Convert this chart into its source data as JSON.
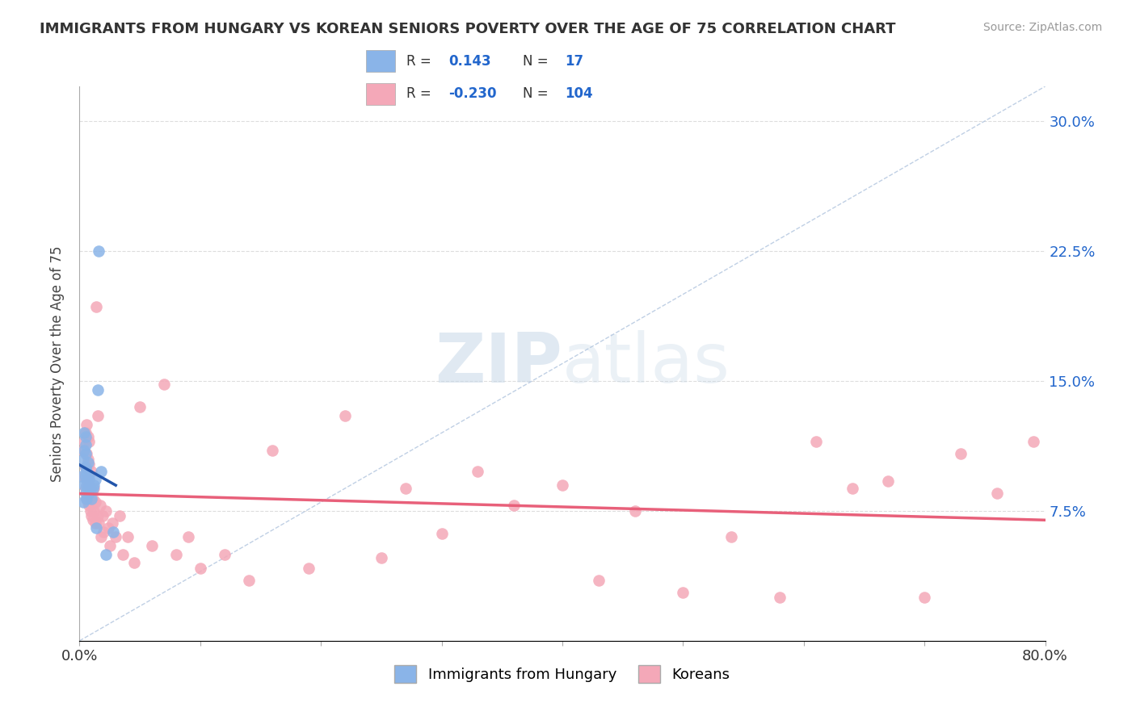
{
  "title": "IMMIGRANTS FROM HUNGARY VS KOREAN SENIORS POVERTY OVER THE AGE OF 75 CORRELATION CHART",
  "source": "Source: ZipAtlas.com",
  "ylabel": "Seniors Poverty Over the Age of 75",
  "xlim": [
    0.0,
    0.8
  ],
  "ylim": [
    0.0,
    0.32
  ],
  "yticks": [
    0.0,
    0.075,
    0.15,
    0.225,
    0.3
  ],
  "ytick_labels": [
    "",
    "7.5%",
    "15.0%",
    "22.5%",
    "30.0%"
  ],
  "blue_color": "#8ab4e8",
  "pink_color": "#f4a8b8",
  "blue_line_color": "#2255aa",
  "pink_line_color": "#e8607a",
  "dashed_line_color": "#b0c4de",
  "watermark_zip": "ZIP",
  "watermark_atlas": "atlas",
  "hungary_x": [
    0.002,
    0.003,
    0.003,
    0.004,
    0.004,
    0.004,
    0.005,
    0.005,
    0.005,
    0.005,
    0.005,
    0.005,
    0.006,
    0.006,
    0.006,
    0.007,
    0.007,
    0.007,
    0.008,
    0.008,
    0.009,
    0.01,
    0.011,
    0.012,
    0.013,
    0.014,
    0.015,
    0.016,
    0.018,
    0.022,
    0.028
  ],
  "hungary_y": [
    0.095,
    0.08,
    0.105,
    0.09,
    0.11,
    0.12,
    0.085,
    0.095,
    0.1,
    0.108,
    0.113,
    0.118,
    0.082,
    0.09,
    0.098,
    0.088,
    0.095,
    0.103,
    0.085,
    0.093,
    0.088,
    0.082,
    0.088,
    0.09,
    0.093,
    0.065,
    0.145,
    0.225,
    0.098,
    0.05,
    0.063
  ],
  "korean_x": [
    0.003,
    0.004,
    0.004,
    0.005,
    0.005,
    0.005,
    0.006,
    0.006,
    0.006,
    0.006,
    0.007,
    0.007,
    0.007,
    0.007,
    0.008,
    0.008,
    0.008,
    0.008,
    0.009,
    0.009,
    0.01,
    0.01,
    0.01,
    0.011,
    0.011,
    0.012,
    0.012,
    0.013,
    0.013,
    0.014,
    0.015,
    0.015,
    0.016,
    0.017,
    0.018,
    0.019,
    0.02,
    0.022,
    0.024,
    0.025,
    0.027,
    0.03,
    0.033,
    0.036,
    0.04,
    0.045,
    0.05,
    0.06,
    0.07,
    0.08,
    0.09,
    0.1,
    0.12,
    0.14,
    0.16,
    0.19,
    0.22,
    0.25,
    0.27,
    0.3,
    0.33,
    0.36,
    0.4,
    0.43,
    0.46,
    0.5,
    0.54,
    0.58,
    0.61,
    0.64,
    0.67,
    0.7,
    0.73,
    0.76,
    0.79
  ],
  "korean_y": [
    0.11,
    0.095,
    0.115,
    0.088,
    0.1,
    0.12,
    0.082,
    0.093,
    0.108,
    0.125,
    0.08,
    0.092,
    0.105,
    0.118,
    0.078,
    0.09,
    0.102,
    0.115,
    0.075,
    0.088,
    0.072,
    0.085,
    0.098,
    0.07,
    0.082,
    0.075,
    0.088,
    0.068,
    0.08,
    0.193,
    0.072,
    0.13,
    0.068,
    0.078,
    0.06,
    0.072,
    0.063,
    0.075,
    0.065,
    0.055,
    0.068,
    0.06,
    0.072,
    0.05,
    0.06,
    0.045,
    0.135,
    0.055,
    0.148,
    0.05,
    0.06,
    0.042,
    0.05,
    0.035,
    0.11,
    0.042,
    0.13,
    0.048,
    0.088,
    0.062,
    0.098,
    0.078,
    0.09,
    0.035,
    0.075,
    0.028,
    0.06,
    0.025,
    0.115,
    0.088,
    0.092,
    0.025,
    0.108,
    0.085,
    0.115
  ]
}
